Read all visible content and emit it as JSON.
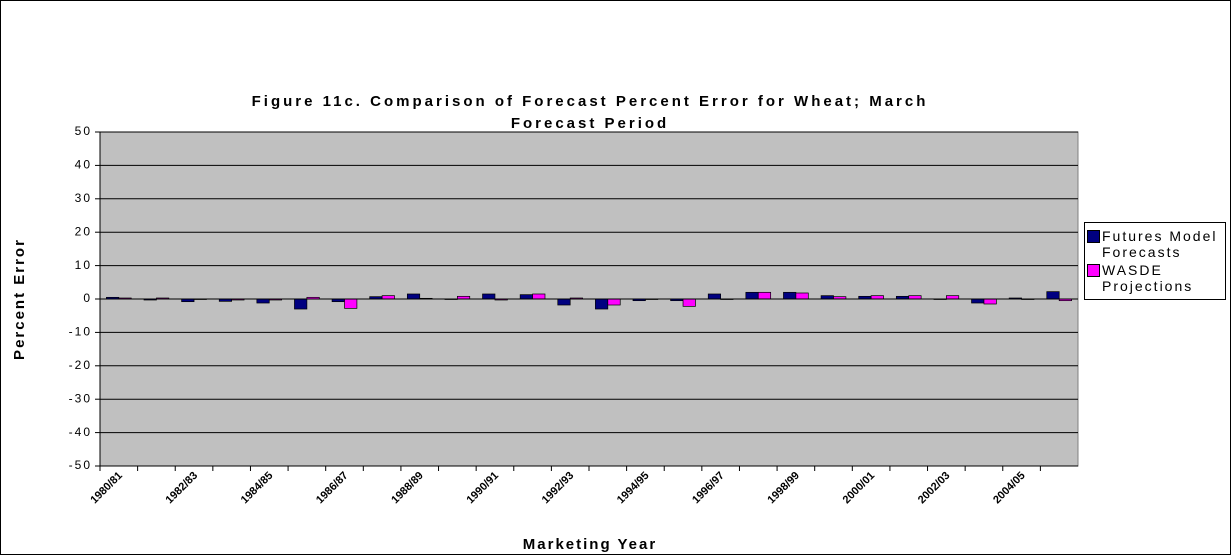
{
  "chart_data": {
    "type": "bar",
    "title": "Figure 11c.  Comparison of Forecast Percent Error for Wheat; March Forecast Period",
    "xlabel": "Marketing Year",
    "ylabel": "Percent Error",
    "categories": [
      "1980/81",
      null,
      "1982/83",
      null,
      "1984/85",
      null,
      "1986/87",
      null,
      "1988/89",
      null,
      "1990/91",
      null,
      "1992/93",
      null,
      "1994/95",
      null,
      "1996/97",
      null,
      "1998/99",
      null,
      "2000/01",
      null,
      "2002/03",
      null,
      "2004/05",
      null
    ],
    "series": [
      {
        "name": "Futures Model Forecasts",
        "color": "#000080",
        "values": [
          0.5,
          -0.3,
          -0.8,
          -0.7,
          -1.2,
          -3,
          -0.8,
          0.7,
          1.5,
          0,
          1.5,
          1.3,
          -1.8,
          -3,
          -0.5,
          -0.5,
          1.5,
          2,
          2,
          1,
          0.8,
          0.8,
          0,
          -1.2,
          0.3,
          2.2
        ]
      },
      {
        "name": "WASDE Projections",
        "color": "#FF00FF",
        "values": [
          0.3,
          0.3,
          0,
          -0.3,
          -0.3,
          0.5,
          -2.8,
          1,
          0.2,
          0.8,
          -0.3,
          1.5,
          0.3,
          -1.8,
          0,
          -2.2,
          0,
          2,
          1.8,
          0.7,
          1,
          1,
          1,
          -1.5,
          0,
          -0.5
        ]
      }
    ],
    "ylim": [
      -50,
      50
    ],
    "yticks": [
      -50,
      -40,
      -30,
      -20,
      -10,
      0,
      10,
      20,
      30,
      40,
      50
    ],
    "grid": true,
    "legend": "right",
    "plot_background": "#C0C0C0"
  }
}
